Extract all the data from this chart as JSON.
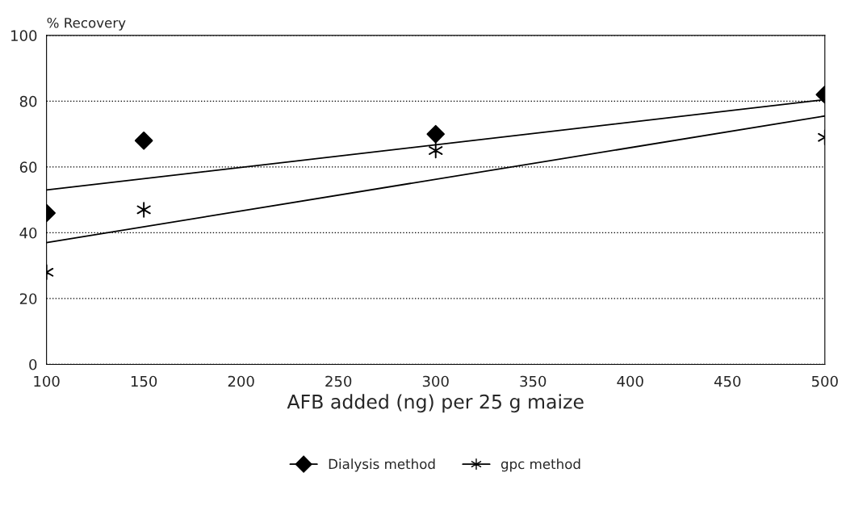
{
  "chart_data": {
    "type": "scatter",
    "ylabel": "% Recovery",
    "xlabel": "AFB added (ng) per 25 g maize",
    "series": [
      {
        "name": "Dialysis method",
        "marker": "diamond",
        "color": "#000000",
        "x": [
          100,
          150,
          300,
          500
        ],
        "values": [
          46,
          68,
          70,
          82
        ]
      },
      {
        "name": "gpc method",
        "marker": "cross",
        "color": "#000000",
        "x": [
          100,
          150,
          300,
          500
        ],
        "values": [
          28,
          47,
          65,
          69
        ]
      },
      {
        "type": "line",
        "marker": "none",
        "color": "#000000",
        "x": [
          100,
          500
        ],
        "values": [
          53,
          80.5
        ]
      },
      {
        "type": "line",
        "marker": "none",
        "color": "#000000",
        "x": [
          100,
          500
        ],
        "values": [
          37,
          75.5
        ]
      }
    ],
    "xlim": [
      100,
      500
    ],
    "xticks": [
      100,
      150,
      200,
      250,
      300,
      350,
      400,
      450,
      500
    ],
    "ylim": [
      0,
      100
    ],
    "yticks": [
      0,
      20,
      40,
      60,
      80,
      100
    ],
    "grid": "y",
    "line_style": "solid",
    "legend": "bottom"
  }
}
